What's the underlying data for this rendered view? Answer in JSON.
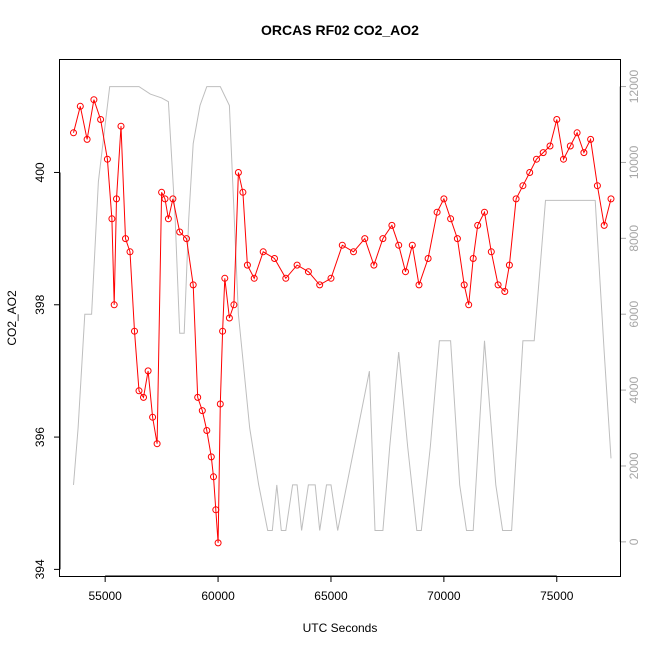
{
  "chart_data": {
    "type": "scatter",
    "title": "ORCAS RF02 CO2_AO2",
    "xlabel": "UTC Seconds",
    "ylabel": "CO2_AO2",
    "xlim": [
      53000,
      77800
    ],
    "ylim": [
      393.9,
      401.7
    ],
    "y2lim": [
      -900,
      12700
    ],
    "x_ticks": [
      55000,
      60000,
      65000,
      70000,
      75000
    ],
    "y_ticks": [
      394,
      396,
      398,
      400
    ],
    "y2_ticks": [
      0,
      2000,
      4000,
      6000,
      8000,
      10000,
      12000
    ],
    "grid": false,
    "legend": "none",
    "colors": {
      "co2": "#ff0000",
      "altitude": "#bebebe"
    },
    "series": [
      {
        "style": "points+lines",
        "axis": "left",
        "x": [
          53600,
          53900,
          54200,
          54500,
          54800,
          55100,
          55300,
          55400,
          55500,
          55700,
          55900,
          56100,
          56300,
          56500,
          56700,
          56900,
          57100,
          57300,
          57500,
          57650,
          57800,
          58000,
          58300,
          58600,
          58900,
          59100,
          59300,
          59500,
          59700,
          59800,
          59900,
          60000,
          60100,
          60200,
          60300,
          60500,
          60700,
          60900,
          61100,
          61300,
          61600,
          62000,
          62500,
          63000,
          63500,
          64000,
          64500,
          65000,
          65500,
          66000,
          66500,
          66900,
          67300,
          67700,
          68000,
          68300,
          68600,
          68900,
          69300,
          69700,
          70000,
          70300,
          70600,
          70900,
          71100,
          71300,
          71500,
          71800,
          72100,
          72400,
          72700,
          72900,
          73200,
          73500,
          73800,
          74100,
          74400,
          74700,
          75000,
          75300,
          75600,
          75900,
          76200,
          76500,
          76800,
          77100,
          77400
        ],
        "y": [
          400.6,
          401.0,
          400.5,
          401.1,
          400.8,
          400.2,
          399.3,
          398.0,
          399.6,
          400.7,
          399.0,
          398.8,
          397.6,
          396.7,
          396.6,
          397.0,
          396.3,
          395.9,
          399.7,
          399.6,
          399.3,
          399.6,
          399.1,
          399.0,
          398.3,
          396.6,
          396.4,
          396.1,
          395.7,
          395.4,
          394.9,
          394.4,
          396.5,
          397.6,
          398.4,
          397.8,
          398.0,
          400.0,
          399.7,
          398.6,
          398.4,
          398.8,
          398.7,
          398.4,
          398.6,
          398.5,
          398.3,
          398.4,
          398.9,
          398.8,
          399.0,
          398.6,
          399.0,
          399.2,
          398.9,
          398.5,
          398.9,
          398.3,
          398.7,
          399.4,
          399.6,
          399.3,
          399.0,
          398.3,
          398.0,
          398.7,
          399.2,
          399.4,
          398.8,
          398.3,
          398.2,
          398.6,
          399.6,
          399.8,
          400.0,
          400.2,
          400.3,
          400.4,
          400.8,
          400.2,
          400.4,
          400.6,
          400.3,
          400.5,
          399.8,
          399.2,
          399.6
        ]
      },
      {
        "style": "line",
        "axis": "right",
        "x": [
          53600,
          53800,
          54100,
          54400,
          54700,
          55200,
          55600,
          56000,
          56500,
          57000,
          57500,
          57800,
          58100,
          58300,
          58500,
          58700,
          58900,
          59200,
          59500,
          59800,
          60100,
          60500,
          60900,
          61400,
          61800,
          62200,
          62400,
          62600,
          62800,
          63000,
          63300,
          63500,
          63700,
          64000,
          64300,
          64500,
          64800,
          65000,
          65300,
          65700,
          66200,
          66700,
          66950,
          67300,
          67600,
          68000,
          68400,
          68800,
          69000,
          69400,
          69800,
          70300,
          70700,
          71000,
          71300,
          71800,
          72300,
          72600,
          73000,
          73500,
          74000,
          74500,
          74800,
          75200,
          75600,
          76000,
          76400,
          76700,
          77100,
          77400
        ],
        "y": [
          1500,
          3000,
          6000,
          6000,
          9500,
          12000,
          12000,
          12000,
          12000,
          11800,
          11700,
          11600,
          8500,
          5500,
          5500,
          8500,
          10500,
          11500,
          12000,
          12000,
          12000,
          11500,
          6000,
          3000,
          1500,
          300,
          300,
          1500,
          300,
          300,
          1500,
          1500,
          300,
          1500,
          1500,
          300,
          1500,
          1500,
          300,
          1500,
          3000,
          4500,
          300,
          300,
          2500,
          5000,
          2500,
          300,
          300,
          2500,
          5300,
          5300,
          1500,
          300,
          300,
          5300,
          1500,
          300,
          300,
          5300,
          5300,
          9000,
          9000,
          9000,
          9000,
          9000,
          9000,
          9000,
          5000,
          2200
        ]
      }
    ]
  }
}
